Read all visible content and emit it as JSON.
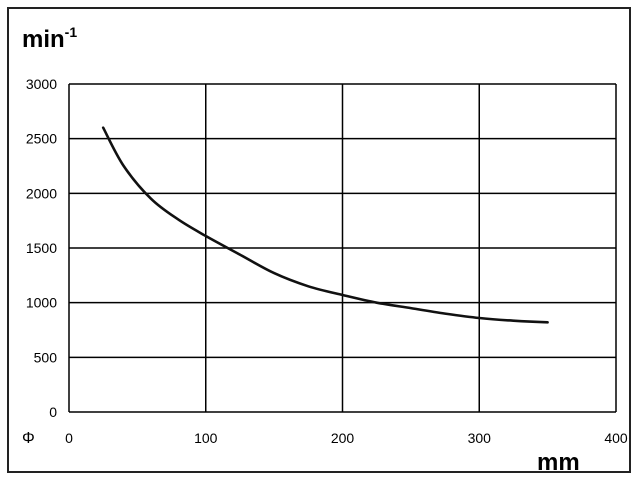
{
  "chart_data": {
    "type": "line",
    "title": "",
    "ylabel": "min",
    "ylabel_superscript": "-1",
    "xlabel": "mm",
    "x_symbol": "Φ",
    "xlim": [
      0,
      400
    ],
    "ylim": [
      0,
      3000
    ],
    "x_ticks": [
      0,
      100,
      200,
      300,
      400
    ],
    "y_ticks": [
      0,
      500,
      1000,
      1500,
      2000,
      2500,
      3000
    ],
    "grid": true,
    "legend": "none",
    "series": [
      {
        "color": "#111111",
        "x": [
          25,
          40,
          60,
          80,
          100,
          125,
          150,
          175,
          200,
          225,
          250,
          275,
          300,
          325,
          350
        ],
        "values": [
          2600,
          2250,
          1950,
          1760,
          1610,
          1440,
          1270,
          1150,
          1070,
          1000,
          950,
          900,
          860,
          835,
          820
        ]
      }
    ]
  }
}
